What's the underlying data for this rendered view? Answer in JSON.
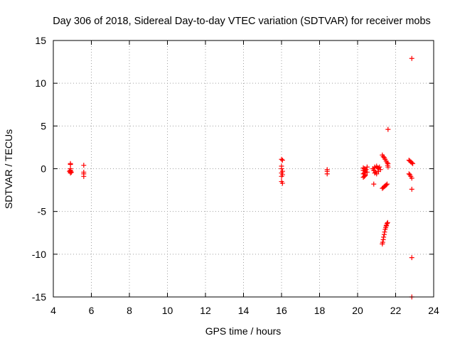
{
  "chart_data": {
    "type": "scatter",
    "title": "Day 306 of 2018, Sidereal Day-to-day VTEC variation (SDTVAR) for receiver mobs",
    "xlabel": "GPS time / hours",
    "ylabel": "SDTVAR / TECUs",
    "xlim": [
      4,
      24
    ],
    "ylim": [
      -15,
      15
    ],
    "xticks": [
      4,
      6,
      8,
      10,
      12,
      14,
      16,
      18,
      20,
      22,
      24
    ],
    "yticks": [
      -15,
      -10,
      -5,
      0,
      5,
      10,
      15
    ],
    "grid": true,
    "legend": "none",
    "marker": "+",
    "color": "#ff0000",
    "series": [
      {
        "name": "SDTVAR",
        "points": [
          [
            4.9,
            0.6
          ],
          [
            4.9,
            0.5
          ],
          [
            4.9,
            0.0
          ],
          [
            4.9,
            -0.2
          ],
          [
            4.9,
            -0.3
          ],
          [
            4.9,
            -0.4
          ],
          [
            4.9,
            -0.5
          ],
          [
            4.85,
            -0.3
          ],
          [
            4.95,
            -0.4
          ],
          [
            5.6,
            0.4
          ],
          [
            5.6,
            -0.4
          ],
          [
            5.6,
            -0.6
          ],
          [
            5.6,
            -0.9
          ],
          [
            16.0,
            1.1
          ],
          [
            16.05,
            1.0
          ],
          [
            16.0,
            0.3
          ],
          [
            16.0,
            0.0
          ],
          [
            16.05,
            -0.3
          ],
          [
            16.0,
            -0.5
          ],
          [
            16.05,
            -0.7
          ],
          [
            16.0,
            -0.9
          ],
          [
            16.0,
            -1.5
          ],
          [
            16.05,
            -1.7
          ],
          [
            18.4,
            -0.1
          ],
          [
            18.4,
            -0.3
          ],
          [
            18.4,
            -0.6
          ],
          [
            20.3,
            0.1
          ],
          [
            20.35,
            0.0
          ],
          [
            20.3,
            -0.2
          ],
          [
            20.4,
            -0.3
          ],
          [
            20.35,
            -0.5
          ],
          [
            20.3,
            -0.6
          ],
          [
            20.4,
            -0.7
          ],
          [
            20.35,
            -0.9
          ],
          [
            20.3,
            -1.0
          ],
          [
            20.4,
            -0.8
          ],
          [
            20.45,
            -0.1
          ],
          [
            20.5,
            -0.4
          ],
          [
            20.5,
            0.2
          ],
          [
            20.8,
            0.0
          ],
          [
            20.85,
            -0.2
          ],
          [
            20.9,
            0.2
          ],
          [
            20.95,
            -0.4
          ],
          [
            21.0,
            0.3
          ],
          [
            20.9,
            -0.5
          ],
          [
            21.05,
            0.1
          ],
          [
            21.1,
            -0.3
          ],
          [
            21.15,
            0.2
          ],
          [
            21.2,
            -0.1
          ],
          [
            21.0,
            -0.6
          ],
          [
            20.85,
            -1.8
          ],
          [
            20.9,
            0.1
          ],
          [
            21.1,
            0.0
          ],
          [
            21.3,
            1.6
          ],
          [
            21.35,
            1.4
          ],
          [
            21.4,
            1.3
          ],
          [
            21.45,
            1.1
          ],
          [
            21.5,
            0.9
          ],
          [
            21.55,
            0.7
          ],
          [
            21.6,
            0.6
          ],
          [
            21.58,
            0.4
          ],
          [
            21.6,
            0.2
          ],
          [
            21.6,
            4.6
          ],
          [
            21.3,
            -2.3
          ],
          [
            21.35,
            -2.2
          ],
          [
            21.4,
            -2.1
          ],
          [
            21.45,
            -2.0
          ],
          [
            21.5,
            -1.9
          ],
          [
            21.55,
            -1.8
          ],
          [
            21.3,
            -8.8
          ],
          [
            21.32,
            -8.6
          ],
          [
            21.35,
            -8.3
          ],
          [
            21.37,
            -8.0
          ],
          [
            21.4,
            -7.7
          ],
          [
            21.42,
            -7.4
          ],
          [
            21.45,
            -7.1
          ],
          [
            21.48,
            -6.9
          ],
          [
            21.5,
            -6.7
          ],
          [
            21.52,
            -6.6
          ],
          [
            21.55,
            -6.4
          ],
          [
            21.58,
            -6.3
          ],
          [
            22.7,
            1.0
          ],
          [
            22.75,
            0.9
          ],
          [
            22.8,
            0.8
          ],
          [
            22.85,
            0.7
          ],
          [
            22.9,
            0.6
          ],
          [
            22.7,
            -0.6
          ],
          [
            22.75,
            -0.7
          ],
          [
            22.8,
            -0.9
          ],
          [
            22.85,
            -1.1
          ],
          [
            22.85,
            12.9
          ],
          [
            22.85,
            -2.4
          ],
          [
            22.85,
            -10.4
          ],
          [
            22.85,
            -15.0
          ]
        ]
      }
    ]
  }
}
